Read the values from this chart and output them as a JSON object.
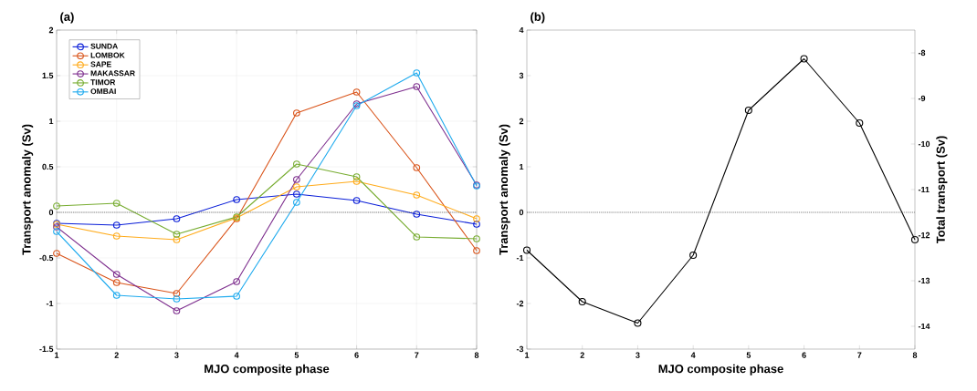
{
  "chart_data": [
    {
      "type": "line",
      "title": "(a)",
      "xlabel": "MJO composite phase",
      "ylabel": "Transport anomaly (Sv)",
      "x": [
        1,
        2,
        3,
        4,
        5,
        6,
        7,
        8
      ],
      "xlim": [
        1,
        8
      ],
      "xticks": [
        1,
        2,
        3,
        4,
        5,
        6,
        7,
        8
      ],
      "ylim": [
        -1.5,
        2
      ],
      "yticks": [
        -1.5,
        -1,
        -0.5,
        0,
        0.5,
        1,
        1.5,
        2
      ],
      "grid": true,
      "legend": "top left",
      "marker": "circle",
      "line_style": "solid",
      "ref_lines": [
        {
          "axis": "y",
          "value": 0,
          "color": "#404040",
          "line_style": "dotted"
        }
      ],
      "series": [
        {
          "name": "SUNDA",
          "color": "#0a1ed8",
          "values": [
            -0.12,
            -0.14,
            -0.07,
            0.14,
            0.2,
            0.13,
            -0.02,
            -0.13
          ]
        },
        {
          "name": "LOMBOK",
          "color": "#d95319",
          "values": [
            -0.45,
            -0.77,
            -0.89,
            -0.07,
            1.09,
            1.32,
            0.49,
            -0.42
          ]
        },
        {
          "name": "SAPE",
          "color": "#ffab1a",
          "values": [
            -0.13,
            -0.26,
            -0.3,
            -0.06,
            0.28,
            0.34,
            0.19,
            -0.07
          ]
        },
        {
          "name": "MAKASSAR",
          "color": "#7e2f8e",
          "values": [
            -0.16,
            -0.68,
            -1.08,
            -0.76,
            0.36,
            1.19,
            1.38,
            0.3
          ]
        },
        {
          "name": "TIMOR",
          "color": "#77ac30",
          "values": [
            0.07,
            0.1,
            -0.24,
            -0.05,
            0.53,
            0.39,
            -0.27,
            -0.29
          ]
        },
        {
          "name": "OMBAI",
          "color": "#1eaaee",
          "values": [
            -0.21,
            -0.91,
            -0.95,
            -0.92,
            0.11,
            1.17,
            1.53,
            0.29
          ]
        }
      ]
    },
    {
      "type": "line",
      "title": "(b)",
      "xlabel": "MJO composite phase",
      "ylabel": "Transport anomaly (Sv)",
      "y2label": "Total transport (Sv)",
      "x": [
        1,
        2,
        3,
        4,
        5,
        6,
        7,
        8
      ],
      "xlim": [
        1,
        8
      ],
      "xticks": [
        1,
        2,
        3,
        4,
        5,
        6,
        7,
        8
      ],
      "ylim": [
        -3,
        4
      ],
      "yticks": [
        -3,
        -2,
        -1,
        0,
        1,
        2,
        3,
        4
      ],
      "y2lim": [
        -14.5,
        -7.5
      ],
      "y2ticks": [
        -14,
        -13,
        -12,
        -11,
        -10,
        -9,
        -8
      ],
      "marker": "circle",
      "line_style": "solid",
      "ref_lines": [
        {
          "axis": "y",
          "value": 0,
          "color": "#404040",
          "line_style": "dotted"
        }
      ],
      "series": [
        {
          "color": "#000000",
          "values": [
            -0.83,
            -1.96,
            -2.43,
            -0.94,
            2.24,
            3.37,
            1.96,
            -0.6
          ]
        }
      ]
    }
  ]
}
